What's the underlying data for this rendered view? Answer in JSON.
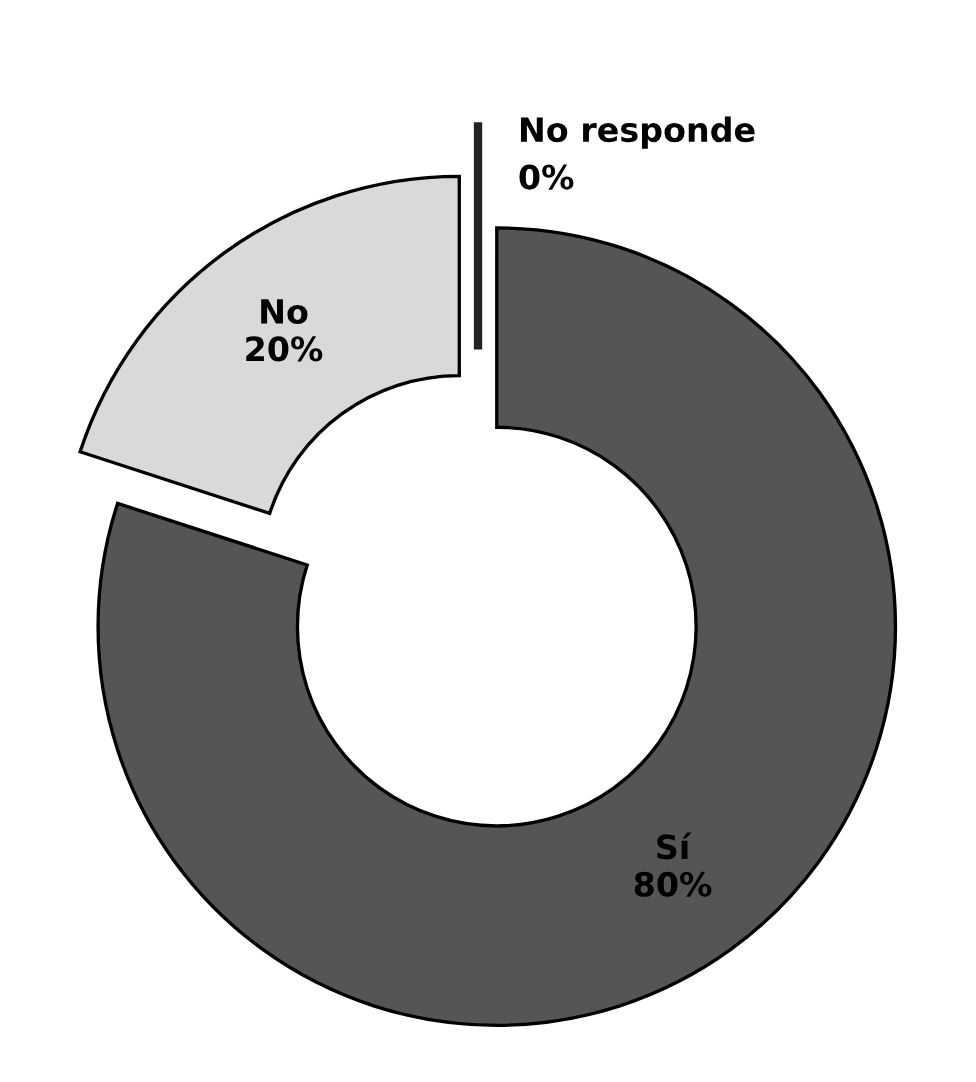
{
  "chart_data": {
    "type": "donut",
    "categories": [
      "Sí",
      "No",
      "No responde"
    ],
    "values": [
      80,
      20,
      0
    ],
    "colors": [
      "#555555",
      "#d9d9d9",
      "#222222"
    ],
    "value_labels": [
      "80%",
      "20%",
      "0%"
    ],
    "legend": false
  }
}
